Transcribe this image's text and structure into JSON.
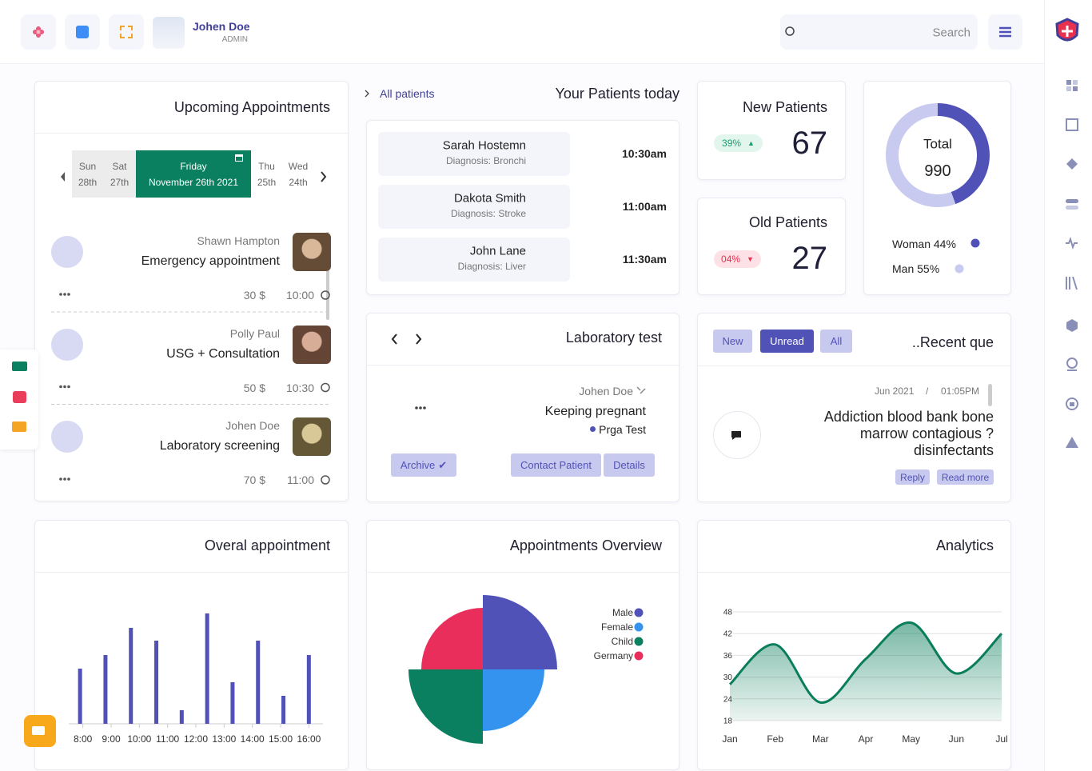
{
  "header": {
    "user_name": "Johen Doe",
    "role": "ADMIN",
    "search_placeholder": "Search"
  },
  "appointments": {
    "title": "Upcoming Appointments",
    "days": [
      {
        "day": "Sun",
        "date": "28th"
      },
      {
        "day": "Sat",
        "date": "27th"
      },
      {
        "day": "Friday",
        "date": "November 26th 2021",
        "active": true
      },
      {
        "day": "Thu",
        "date": "25th"
      },
      {
        "day": "Wed",
        "date": "24th"
      }
    ],
    "items": [
      {
        "name": "Shawn Hampton",
        "type": "Emergency appointment",
        "price": "30 $",
        "time": "10:00"
      },
      {
        "name": "Polly Paul",
        "type": "USG + Consultation",
        "price": "50 $",
        "time": "10:30"
      },
      {
        "name": "Johen Doe",
        "type": "Laboratory screening",
        "price": "70 $",
        "time": "11:00"
      }
    ]
  },
  "patients_today": {
    "link": "All patients",
    "title": "Your Patients today",
    "items": [
      {
        "name": "Sarah Hostemn",
        "diagnosis": "Diagnosis: Bronchi",
        "time": "10:30am"
      },
      {
        "name": "Dakota Smith",
        "diagnosis": "Diagnosis: Stroke",
        "time": "11:00am"
      },
      {
        "name": "John Lane",
        "diagnosis": "Diagnosis: Liver",
        "time": "11:30am"
      }
    ]
  },
  "new_patients": {
    "title": "New Patients",
    "change": "39%",
    "trend": "up",
    "value": 67
  },
  "old_patients": {
    "title": "Old Patients",
    "change": "04%",
    "trend": "down",
    "value": 27
  },
  "total": {
    "label": "Total",
    "value": 990,
    "segments": [
      {
        "name": "Woman",
        "value": 44,
        "value_label": "44%",
        "color": "#5052b8"
      },
      {
        "name": "Man",
        "value": 55,
        "value_label": "55%",
        "color": "#c9caf0"
      }
    ]
  },
  "lab": {
    "title": "Laboratory test",
    "doctor": "Johen Doe",
    "test": "Keeping pregnant",
    "tag": "Prga Test",
    "buttons": [
      "Archive",
      "Contact Patient",
      "Details"
    ]
  },
  "recent": {
    "tabs": [
      "New",
      "Unread",
      "All"
    ],
    "active_tab": 1,
    "title": "..Recent que",
    "date": "Jun 2021",
    "separator": "/",
    "time": "01:05PM",
    "message": "Addiction blood bank bone marrow contagious ?disinfectants",
    "actions": [
      "Reply",
      "Read more"
    ]
  },
  "charts": [
    {
      "type": "bar",
      "title": "Overal appointment",
      "color": "#5052b8",
      "x": [
        7.9,
        8.8,
        9.7,
        10.6,
        11.5,
        12.4,
        13.3,
        14.2,
        15.1,
        16.0
      ],
      "values": [
        69,
        86,
        120,
        104,
        17,
        138,
        52,
        104,
        35,
        86
      ],
      "xlim": [
        7.5,
        16.5
      ],
      "xticks": [
        {
          "value": 8,
          "label": "8:00"
        },
        {
          "value": 9,
          "label": "9:00"
        },
        {
          "value": 10,
          "label": "10:00"
        },
        {
          "value": 11,
          "label": "11:00"
        },
        {
          "value": 12,
          "label": "12:00"
        },
        {
          "value": 13,
          "label": "13:00"
        },
        {
          "value": 14,
          "label": "14:00"
        },
        {
          "value": 15,
          "label": "15:00"
        },
        {
          "value": 16,
          "label": "16:00"
        }
      ],
      "ylim": [
        0,
        150
      ]
    },
    {
      "type": "polarArea",
      "title": "Appointments Overview",
      "categories": [
        "Male",
        "Female",
        "Child",
        "Germany"
      ],
      "values": [
        93,
        77,
        93,
        77
      ],
      "colors": [
        "#5052b8",
        "#3593f0",
        "#0a8060",
        "#ea2e5c"
      ],
      "rlim": [
        0,
        100
      ]
    },
    {
      "type": "line",
      "title": "Analytics",
      "color": "#0a7d5a",
      "categories": [
        "Jan",
        "Feb",
        "Mar",
        "Apr",
        "May",
        "Jun",
        "Jul"
      ],
      "values": [
        28,
        39,
        23,
        35,
        45,
        31,
        42
      ],
      "ylim": [
        18,
        48
      ],
      "yticks": [
        18,
        24,
        30,
        36,
        42,
        48
      ],
      "grid": true
    }
  ]
}
